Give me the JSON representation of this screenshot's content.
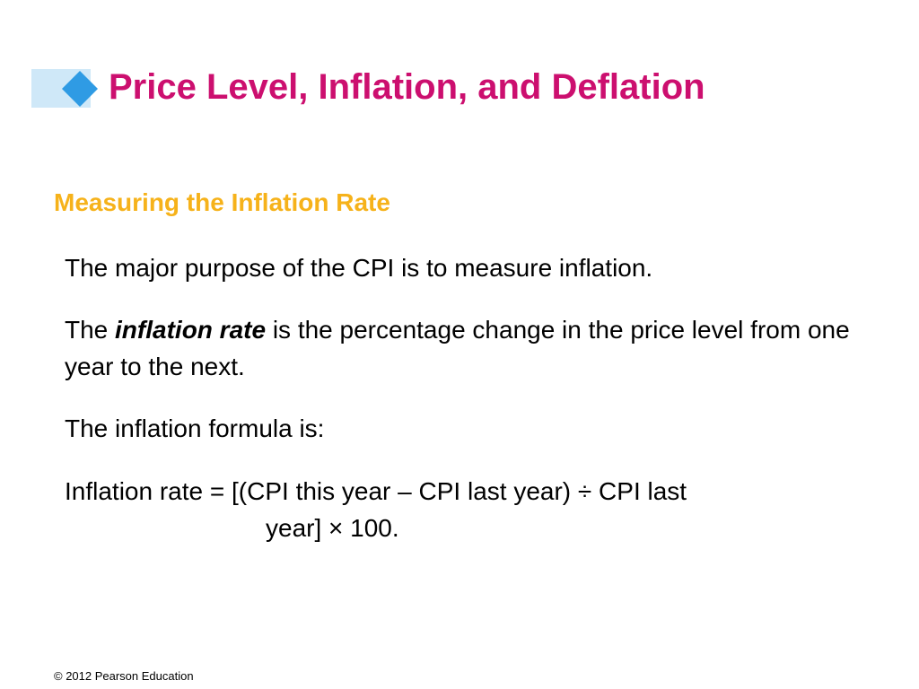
{
  "slide": {
    "title": "Price Level, Inflation, and Deflation",
    "subtitle": "Measuring the Inflation Rate",
    "p1": "The major purpose of the CPI is to measure inflation.",
    "p2_before": "The ",
    "p2_term": "inflation rate",
    "p2_after": " is the percentage change in the price level from one year to the next.",
    "p3": "The inflation formula is:",
    "p4_line1": "Inflation rate = [(CPI this year – CPI last year) ÷ CPI last",
    "p4_line2": "year] × 100.",
    "footer": "© 2012 Pearson Education"
  },
  "colors": {
    "title": "#cc0f6f",
    "subtitle": "#f6b21a",
    "accent_bar": "#cfe8f8",
    "diamond": "#2f9be4"
  },
  "icons": {
    "title_marker": "diamond-icon"
  }
}
